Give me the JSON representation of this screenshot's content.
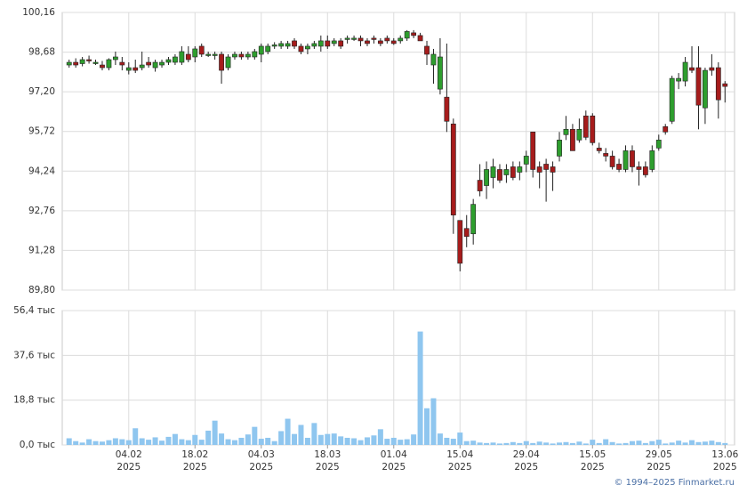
{
  "chart_data": [
    {
      "type": "candlestick",
      "up_color": "#2e9e2e",
      "down_color": "#a61c1c",
      "wick_color": "#222222",
      "ylim": [
        89.8,
        100.16
      ],
      "yticks": [
        {
          "value": 100.16,
          "label": "100,16"
        },
        {
          "value": 98.68,
          "label": "98,68"
        },
        {
          "value": 97.2,
          "label": "97,20"
        },
        {
          "value": 95.72,
          "label": "95,72"
        },
        {
          "value": 94.24,
          "label": "94,24"
        },
        {
          "value": 92.76,
          "label": "92,76"
        },
        {
          "value": 91.28,
          "label": "91,28"
        },
        {
          "value": 89.8,
          "label": "89,80"
        }
      ],
      "grid": true,
      "open": [
        98.2,
        98.3,
        98.25,
        98.4,
        98.3,
        98.2,
        98.1,
        98.4,
        98.3,
        98.0,
        98.1,
        98.1,
        98.3,
        98.1,
        98.2,
        98.3,
        98.3,
        98.3,
        98.6,
        98.5,
        98.9,
        98.6,
        98.6,
        98.6,
        98.1,
        98.5,
        98.6,
        98.5,
        98.5,
        98.6,
        98.7,
        98.9,
        98.9,
        98.9,
        99.1,
        98.9,
        98.8,
        98.9,
        98.9,
        99.1,
        99.0,
        99.1,
        99.2,
        99.2,
        99.2,
        99.1,
        99.2,
        99.1,
        99.2,
        99.1,
        99.1,
        99.2,
        99.4,
        99.3,
        98.9,
        98.2,
        97.3,
        97.0,
        96.0,
        92.4,
        92.1,
        91.9,
        93.9,
        93.7,
        94.0,
        94.3,
        94.1,
        94.4,
        94.2,
        94.5,
        95.7,
        94.4,
        94.5,
        94.4,
        94.8,
        95.6,
        95.8,
        95.4,
        96.3,
        96.3,
        95.1,
        94.9,
        94.8,
        94.5,
        94.3,
        95.0,
        94.4,
        94.4,
        94.3,
        95.1,
        95.9,
        96.1,
        97.6,
        97.6,
        98.1,
        98.1,
        96.6,
        98.1,
        98.1,
        97.5
      ],
      "high": [
        98.4,
        98.45,
        98.5,
        98.55,
        98.4,
        98.35,
        98.45,
        98.7,
        98.5,
        98.3,
        98.4,
        98.7,
        98.5,
        98.4,
        98.4,
        98.5,
        98.6,
        98.9,
        98.9,
        98.9,
        99.0,
        98.7,
        98.7,
        98.7,
        98.6,
        98.7,
        98.7,
        98.7,
        98.8,
        99.0,
        99.0,
        99.05,
        99.1,
        99.1,
        99.2,
        99.0,
        99.0,
        99.1,
        99.3,
        99.3,
        99.2,
        99.2,
        99.3,
        99.3,
        99.3,
        99.2,
        99.3,
        99.2,
        99.3,
        99.2,
        99.3,
        99.5,
        99.5,
        99.4,
        99.1,
        98.8,
        99.2,
        99.0,
        96.2,
        92.4,
        92.6,
        93.2,
        94.5,
        94.6,
        94.7,
        94.5,
        94.5,
        94.6,
        94.6,
        95.0,
        95.7,
        94.6,
        94.7,
        94.6,
        95.7,
        96.3,
        96.0,
        96.2,
        96.5,
        96.4,
        95.3,
        95.1,
        95.0,
        94.7,
        95.2,
        95.2,
        94.6,
        94.6,
        95.2,
        95.6,
        96.0,
        97.8,
        97.9,
        98.5,
        98.9,
        98.9,
        98.1,
        98.6,
        98.3,
        97.6
      ],
      "low": [
        98.1,
        98.1,
        98.15,
        98.25,
        98.2,
        98.0,
        98.0,
        98.2,
        98.0,
        97.85,
        97.9,
        98.0,
        98.1,
        97.95,
        98.1,
        98.2,
        98.2,
        98.2,
        98.3,
        98.3,
        98.5,
        98.5,
        98.4,
        97.5,
        98.0,
        98.4,
        98.4,
        98.4,
        98.4,
        98.3,
        98.6,
        98.8,
        98.8,
        98.8,
        98.8,
        98.6,
        98.6,
        98.8,
        98.7,
        98.8,
        98.9,
        98.8,
        99.0,
        99.1,
        98.9,
        98.9,
        99.0,
        98.9,
        99.0,
        98.95,
        99.0,
        99.1,
        99.2,
        99.1,
        98.2,
        97.5,
        97.1,
        95.7,
        91.9,
        90.5,
        91.4,
        91.5,
        93.3,
        93.2,
        93.6,
        93.8,
        93.8,
        93.9,
        93.9,
        94.2,
        94.0,
        93.6,
        93.1,
        93.5,
        94.6,
        95.4,
        95.0,
        95.3,
        95.4,
        95.2,
        94.9,
        94.6,
        94.3,
        94.2,
        94.2,
        94.2,
        93.7,
        94.0,
        94.2,
        95.0,
        95.6,
        96.0,
        97.3,
        97.4,
        97.9,
        95.8,
        96.0,
        97.8,
        96.2,
        96.8
      ],
      "close": [
        98.3,
        98.2,
        98.4,
        98.35,
        98.3,
        98.1,
        98.4,
        98.5,
        98.2,
        98.1,
        98.0,
        98.2,
        98.2,
        98.3,
        98.3,
        98.4,
        98.5,
        98.7,
        98.4,
        98.8,
        98.6,
        98.6,
        98.6,
        98.0,
        98.5,
        98.6,
        98.5,
        98.6,
        98.7,
        98.9,
        98.9,
        98.95,
        99.0,
        99.0,
        98.9,
        98.7,
        98.9,
        99.0,
        99.1,
        98.9,
        99.1,
        98.9,
        99.2,
        99.2,
        99.1,
        99.0,
        99.15,
        99.0,
        99.1,
        99.0,
        99.2,
        99.45,
        99.3,
        99.1,
        98.6,
        98.6,
        98.5,
        96.1,
        92.6,
        90.8,
        91.8,
        93.0,
        93.5,
        94.3,
        94.4,
        93.9,
        94.3,
        94.0,
        94.4,
        94.8,
        94.3,
        94.2,
        94.3,
        94.2,
        95.4,
        95.8,
        95.0,
        95.8,
        95.5,
        95.3,
        95.0,
        94.8,
        94.4,
        94.3,
        95.0,
        94.4,
        94.3,
        94.1,
        95.0,
        95.4,
        95.7,
        97.7,
        97.7,
        98.3,
        98.0,
        96.7,
        98.0,
        98.0,
        96.9,
        97.4
      ]
    },
    {
      "type": "bar",
      "color": "#8fc6ef",
      "categories": [
        null,
        null,
        null,
        null,
        null,
        null,
        null,
        null,
        null,
        [
          "04.02",
          "2025"
        ],
        null,
        null,
        null,
        null,
        null,
        null,
        null,
        null,
        null,
        [
          "18.02",
          "2025"
        ],
        null,
        null,
        null,
        null,
        null,
        null,
        null,
        null,
        null,
        [
          "04.03",
          "2025"
        ],
        null,
        null,
        null,
        null,
        null,
        null,
        null,
        null,
        null,
        [
          "18.03",
          "2025"
        ],
        null,
        null,
        null,
        null,
        null,
        null,
        null,
        null,
        null,
        [
          "01.04",
          "2025"
        ],
        null,
        null,
        null,
        null,
        null,
        null,
        null,
        null,
        null,
        [
          "15.04",
          "2025"
        ],
        null,
        null,
        null,
        null,
        null,
        null,
        null,
        null,
        null,
        [
          "29.04",
          "2025"
        ],
        null,
        null,
        null,
        null,
        null,
        null,
        null,
        null,
        null,
        [
          "15.05",
          "2025"
        ],
        null,
        null,
        null,
        null,
        null,
        null,
        null,
        null,
        null,
        [
          "29.05",
          "2025"
        ],
        null,
        null,
        null,
        null,
        null,
        null,
        null,
        null,
        null,
        [
          "13.06",
          "2025"
        ]
      ],
      "values": [
        2.8,
        1.6,
        1.0,
        2.4,
        1.6,
        1.4,
        2.0,
        2.8,
        2.4,
        2.0,
        7.0,
        2.8,
        2.2,
        3.2,
        1.8,
        3.4,
        4.6,
        2.4,
        2.0,
        4.2,
        2.2,
        6.0,
        10.2,
        4.8,
        2.4,
        2.0,
        3.0,
        4.4,
        7.6,
        2.6,
        3.0,
        1.6,
        5.8,
        11.0,
        4.6,
        8.4,
        3.0,
        9.2,
        4.2,
        4.6,
        4.8,
        3.6,
        3.0,
        2.8,
        2.0,
        3.2,
        4.0,
        6.6,
        2.6,
        3.0,
        2.2,
        2.4,
        4.4,
        47.6,
        15.4,
        19.6,
        4.8,
        3.0,
        2.6,
        5.2,
        1.6,
        1.8,
        1.0,
        0.8,
        1.0,
        0.6,
        0.8,
        1.2,
        0.8,
        1.6,
        0.8,
        1.4,
        1.0,
        0.6,
        1.0,
        1.2,
        0.8,
        1.4,
        0.6,
        2.2,
        0.8,
        2.4,
        1.2,
        0.6,
        0.8,
        1.6,
        1.8,
        0.8,
        1.6,
        2.2,
        0.6,
        1.0,
        1.8,
        1.0,
        2.0,
        1.2,
        1.4,
        1.8,
        1.2,
        0.8
      ],
      "ylim": [
        0,
        56.4
      ],
      "yticks": [
        {
          "value": 56.4,
          "label": "56,4 тыс"
        },
        {
          "value": 37.6,
          "label": "37,6 тыс"
        },
        {
          "value": 18.8,
          "label": "18,8 тыс"
        },
        {
          "value": 0,
          "label": "0,0 тыс"
        }
      ],
      "grid": true
    }
  ],
  "footer": "© 1994–2025 Finmarket.ru"
}
